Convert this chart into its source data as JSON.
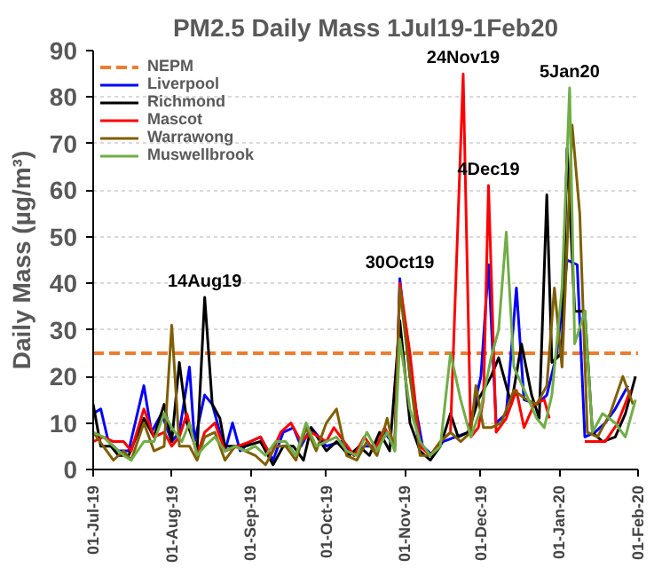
{
  "chart_data": {
    "type": "line",
    "title": "PM2.5 Daily Mass 1Jul19-1Feb20",
    "ylabel": "Daily Mass (µg/m³)",
    "xlim": [
      "2019-07-01",
      "2020-02-01"
    ],
    "xticks": [
      {
        "value": "2019-07-01",
        "label": "01-Jul-19"
      },
      {
        "value": "2019-08-01",
        "label": "01-Aug-19"
      },
      {
        "value": "2019-09-01",
        "label": "01-Sep-19"
      },
      {
        "value": "2019-10-01",
        "label": "01-Oct-19"
      },
      {
        "value": "2019-11-01",
        "label": "01-Nov-19"
      },
      {
        "value": "2019-12-01",
        "label": "01-Dec-19"
      },
      {
        "value": "2020-01-01",
        "label": "01-Jan-20"
      },
      {
        "value": "2020-02-01",
        "label": "01-Feb-20"
      }
    ],
    "ylim": [
      0,
      90
    ],
    "yticks": [
      0,
      10,
      20,
      30,
      40,
      50,
      60,
      70,
      80,
      90
    ],
    "grid": "y",
    "legend": "top left",
    "marker": "none",
    "line_style": "solid",
    "ref_lines": [
      {
        "axis": "y",
        "value": 25,
        "label": "NEPM",
        "color": "#ed7d31",
        "line_style": "dashed"
      }
    ],
    "annotations": [
      {
        "text": "14Aug19",
        "x": "2019-08-14",
        "y": 37
      },
      {
        "text": "30Oct19",
        "x": "2019-10-30",
        "y": 41
      },
      {
        "text": "24Nov19",
        "x": "2019-11-24",
        "y": 85
      },
      {
        "text": "4Dec19",
        "x": "2019-12-04",
        "y": 61
      },
      {
        "text": "5Jan20",
        "x": "2020-01-05",
        "y": 82
      }
    ],
    "series": [
      {
        "name": "Liverpool",
        "color": "#0000ff",
        "x": [
          "2019-07-01",
          "2019-07-04",
          "2019-07-07",
          "2019-07-11",
          "2019-07-15",
          "2019-07-21",
          "2019-07-24",
          "2019-07-28",
          "2019-08-01",
          "2019-08-04",
          "2019-08-08",
          "2019-08-10",
          "2019-08-14",
          "2019-08-17",
          "2019-08-22",
          "2019-08-25",
          "2019-08-28",
          "2019-09-01",
          "2019-09-05",
          "2019-09-10",
          "2019-09-14",
          "2019-09-18",
          "2019-09-21",
          "2019-09-25",
          "2019-10-01",
          "2019-10-07",
          "2019-10-12",
          "2019-10-16",
          "2019-10-20",
          "2019-10-24",
          "2019-10-28",
          "2019-10-30",
          "2019-11-03",
          "2019-11-08",
          "2019-11-12",
          "2019-11-16",
          "2019-11-21",
          "2019-11-26",
          "2019-12-01",
          "2019-12-04",
          "2019-12-07",
          "2019-12-11",
          "2019-12-15",
          "2019-12-18",
          "2019-12-23",
          "2019-12-27",
          "2019-12-31",
          "2020-01-04",
          "2020-01-08",
          "2020-01-11",
          "2020-01-15",
          "2020-01-19",
          "2020-01-23",
          "2020-01-28"
        ],
        "values": [
          12,
          13,
          6,
          4,
          4,
          18,
          8,
          12,
          6,
          8,
          22,
          6,
          16,
          14,
          4,
          10,
          4,
          6,
          7,
          2,
          8,
          9,
          5,
          9,
          5,
          6,
          3,
          5,
          5,
          8,
          5,
          41,
          20,
          5,
          3,
          6,
          7,
          8,
          20,
          44,
          10,
          12,
          39,
          15,
          14,
          16,
          25,
          45,
          44,
          7,
          8,
          10,
          13,
          18
        ]
      },
      {
        "name": "Richmond",
        "color": "#000000",
        "x": [
          "2019-07-01",
          "2019-07-04",
          "2019-07-08",
          "2019-07-11",
          "2019-07-15",
          "2019-07-21",
          "2019-07-25",
          "2019-07-29",
          "2019-08-01",
          "2019-08-04",
          "2019-08-07",
          "2019-08-11",
          "2019-08-14",
          "2019-08-17",
          "2019-08-20",
          "2019-08-22",
          "2019-08-30",
          "2019-09-05",
          "2019-09-10",
          "2019-09-14",
          "2019-09-18",
          "2019-09-22",
          "2019-09-25",
          "2019-10-01",
          "2019-10-05",
          "2019-10-10",
          "2019-10-14",
          "2019-10-18",
          "2019-10-22",
          "2019-10-26",
          "2019-10-30",
          "2019-11-03",
          "2019-11-07",
          "2019-11-11",
          "2019-11-15",
          "2019-11-19",
          "2019-11-22",
          "2019-11-26",
          "2019-11-30",
          "2019-12-05",
          "2019-12-08",
          "2019-12-13",
          "2019-12-17",
          "2019-12-21",
          "2019-12-24",
          "2019-12-27",
          "2019-12-29",
          "2020-01-02",
          "2020-01-04",
          "2020-01-07",
          "2020-01-11",
          "2020-01-14",
          "2020-01-18",
          "2020-01-23",
          "2020-01-27",
          "2020-01-31"
        ],
        "values": [
          14,
          5,
          5,
          3,
          3,
          11,
          7,
          14,
          6,
          23,
          10,
          4,
          37,
          14,
          11,
          5,
          5,
          6,
          1,
          5,
          5,
          2,
          9,
          4,
          6,
          3,
          5,
          3,
          8,
          4,
          32,
          10,
          4,
          2,
          5,
          12,
          7,
          8,
          15,
          20,
          24,
          14,
          27,
          16,
          11,
          59,
          23,
          25,
          69,
          34,
          34,
          8,
          6,
          7,
          12,
          20
        ]
      },
      {
        "name": "Mascot",
        "color": "#ff0000",
        "x": [
          "2019-07-01",
          "2019-07-05",
          "2019-07-09",
          "2019-07-13",
          "2019-07-16",
          "2019-07-21",
          "2019-07-25",
          "2019-07-29",
          "2019-08-01",
          "2019-08-04",
          "2019-08-07",
          "2019-08-11",
          "2019-08-14",
          "2019-08-18",
          "2019-08-22",
          "2019-08-27",
          "2019-09-01",
          "2019-09-05",
          "2019-09-09",
          "2019-09-13",
          "2019-09-17",
          "2019-09-21",
          "2019-09-25",
          "2019-10-01",
          "2019-10-04",
          "2019-10-08",
          "2019-10-12",
          "2019-10-16",
          "2019-10-20",
          "2019-10-24",
          "2019-10-28",
          "2019-10-30",
          "2019-11-03",
          "2019-11-07",
          "2019-11-11",
          "2019-11-15",
          "2019-11-19",
          "2019-11-24",
          "2019-11-27",
          "2019-11-30",
          "2019-12-02",
          "2019-12-04",
          "2019-12-07",
          "2019-12-11",
          "2019-12-15",
          "2019-12-18",
          "2019-12-22",
          "2019-12-26",
          "2019-12-28",
          "2020-01-01",
          "2020-01-11",
          "2020-01-15",
          "2020-01-19",
          "2020-01-24",
          "2020-01-29"
        ],
        "values": [
          6,
          7,
          6,
          6,
          4,
          13,
          7,
          8,
          5,
          7,
          12,
          3,
          8,
          10,
          4,
          5,
          6,
          7,
          3,
          8,
          10,
          6,
          8,
          6,
          9,
          6,
          3,
          7,
          4,
          9,
          5,
          40,
          25,
          5,
          3,
          6,
          8,
          85,
          7,
          9,
          15,
          61,
          8,
          11,
          17,
          9,
          14,
          15,
          11,
          null,
          6,
          6,
          6,
          10,
          17
        ]
      },
      {
        "name": "Warrawong",
        "color": "#7f5f00",
        "x": [
          "2019-07-01",
          "2019-07-05",
          "2019-07-09",
          "2019-07-13",
          "2019-07-16",
          "2019-07-21",
          "2019-07-25",
          "2019-07-29",
          "2019-08-01",
          "2019-08-04",
          "2019-08-08",
          "2019-08-11",
          "2019-08-14",
          "2019-08-18",
          "2019-08-22",
          "2019-08-26",
          "2019-08-30",
          "2019-09-03",
          "2019-09-07",
          "2019-09-11",
          "2019-09-15",
          "2019-09-19",
          "2019-09-23",
          "2019-09-27",
          "2019-10-01",
          "2019-10-05",
          "2019-10-09",
          "2019-10-13",
          "2019-10-17",
          "2019-10-21",
          "2019-10-25",
          "2019-10-28",
          "2019-10-30",
          "2019-11-03",
          "2019-11-07",
          "2019-11-11",
          "2019-11-15",
          "2019-11-19",
          "2019-11-23",
          "2019-11-27",
          "2019-11-29",
          "2019-12-02",
          "2019-12-05",
          "2019-12-09",
          "2019-12-14",
          "2019-12-19",
          "2019-12-23",
          "2019-12-27",
          "2019-12-30",
          "2020-01-02",
          "2020-01-06",
          "2020-01-09",
          "2020-01-12",
          "2020-01-16",
          "2020-01-21",
          "2020-01-26",
          "2020-01-30"
        ],
        "values": [
          8,
          5,
          2,
          4,
          2,
          10,
          4,
          5,
          31,
          5,
          5,
          2,
          7,
          8,
          2,
          5,
          4,
          3,
          1,
          5,
          5,
          2,
          9,
          4,
          10,
          13,
          3,
          2,
          6,
          3,
          11,
          4,
          39,
          20,
          3,
          3,
          6,
          8,
          6,
          8,
          18,
          9,
          9,
          10,
          17,
          15,
          14,
          18,
          39,
          22,
          74,
          55,
          8,
          7,
          12,
          20,
          14
        ]
      },
      {
        "name": "Muswellbrook",
        "color": "#70ad47",
        "x": [
          "2019-07-01",
          "2019-07-05",
          "2019-07-09",
          "2019-07-13",
          "2019-07-16",
          "2019-07-21",
          "2019-07-25",
          "2019-07-29",
          "2019-08-01",
          "2019-08-05",
          "2019-08-08",
          "2019-08-11",
          "2019-08-14",
          "2019-08-18",
          "2019-08-22",
          "2019-08-26",
          "2019-08-30",
          "2019-09-03",
          "2019-09-07",
          "2019-09-11",
          "2019-09-15",
          "2019-09-19",
          "2019-09-23",
          "2019-09-27",
          "2019-10-01",
          "2019-10-05",
          "2019-10-09",
          "2019-10-13",
          "2019-10-17",
          "2019-10-21",
          "2019-10-25",
          "2019-10-28",
          "2019-10-30",
          "2019-11-03",
          "2019-11-07",
          "2019-11-11",
          "2019-11-15",
          "2019-11-19",
          "2019-11-23",
          "2019-11-27",
          "2019-12-01",
          "2019-12-05",
          "2019-12-08",
          "2019-12-11",
          "2019-12-14",
          "2019-12-19",
          "2019-12-23",
          "2019-12-26",
          "2019-12-29",
          "2020-01-02",
          "2020-01-05",
          "2020-01-07",
          "2020-01-11",
          "2020-01-14",
          "2020-01-18",
          "2020-01-23",
          "2020-01-27",
          "2020-01-31"
        ],
        "values": [
          8,
          7,
          5,
          3,
          2,
          6,
          6,
          12,
          9,
          6,
          10,
          3,
          5,
          7,
          4,
          5,
          4,
          5,
          3,
          6,
          6,
          3,
          10,
          5,
          6,
          7,
          4,
          3,
          8,
          4,
          8,
          4,
          28,
          13,
          6,
          3,
          5,
          25,
          15,
          7,
          13,
          24,
          30,
          51,
          22,
          16,
          11,
          9,
          16,
          39,
          82,
          27,
          34,
          8,
          12,
          10,
          7,
          15
        ]
      }
    ]
  }
}
